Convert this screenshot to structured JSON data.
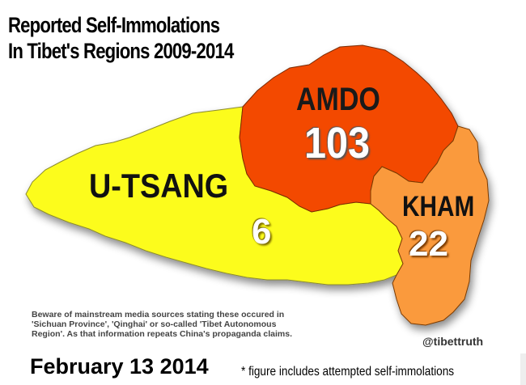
{
  "title": {
    "line1": "Reported Self-Immolations",
    "line2": "In Tibet's Regions 2009-2014"
  },
  "regions": [
    {
      "name": "AMDO",
      "count": "103",
      "color": "#f34a06"
    },
    {
      "name": "U-TSANG",
      "count": "6",
      "color": "#fcfc1a"
    },
    {
      "name": "KHAM",
      "count": "22",
      "color": "#fa9a3e"
    }
  ],
  "warning": "Beware of mainstream media sources stating these occured in 'Sichuan Province', 'Qinghai' or so-called 'Tibet Autonomous Region'. As that information repeats China's propaganda claims.",
  "handle": "@tibettruth",
  "date": "February 13 2014",
  "footnote": "* figure includes attempted self-immolations"
}
